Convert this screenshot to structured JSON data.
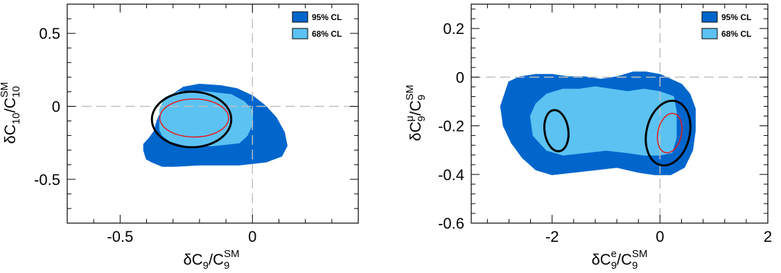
{
  "colors": {
    "cl95": "#0066cc",
    "cl68": "#5cc2f2",
    "red_contour": "#e8171d",
    "black_contour": "#000000",
    "dashed": "#bfbfbf"
  },
  "chart_data": [
    {
      "type": "contour",
      "xlabel": {
        "main": "δC",
        "sub": "9",
        "over": "/C",
        "sub2": "9",
        "sup2": "SM"
      },
      "ylabel": {
        "main": "δC",
        "sub": "10",
        "over": "/C",
        "sub2": "10",
        "sup2": "SM"
      },
      "xlim": [
        -0.7,
        0.4
      ],
      "ylim": [
        -0.8,
        0.7
      ],
      "xticks": [
        -0.5,
        0
      ],
      "xtick_labels": [
        "-0.5",
        "0"
      ],
      "yticks": [
        -0.5,
        0,
        0.5
      ],
      "ytick_labels": [
        "-0.5",
        "0",
        "0.5"
      ],
      "reference_lines": {
        "x": 0,
        "y": 0
      },
      "legend": {
        "placement": "top-right",
        "entries": [
          "95% CL",
          "68% CL"
        ]
      },
      "region_95": [
        [
          -0.41,
          -0.3
        ],
        [
          -0.4,
          -0.36
        ],
        [
          -0.38,
          -0.38
        ],
        [
          -0.34,
          -0.41
        ],
        [
          -0.3,
          -0.41
        ],
        [
          -0.2,
          -0.4
        ],
        [
          -0.05,
          -0.4
        ],
        [
          0.05,
          -0.38
        ],
        [
          0.11,
          -0.34
        ],
        [
          0.13,
          -0.27
        ],
        [
          0.12,
          -0.18
        ],
        [
          0.09,
          -0.08
        ],
        [
          0.05,
          0.0
        ],
        [
          0.0,
          0.07
        ],
        [
          -0.06,
          0.12
        ],
        [
          -0.12,
          0.14
        ],
        [
          -0.2,
          0.15
        ],
        [
          -0.26,
          0.13
        ],
        [
          -0.31,
          0.07
        ],
        [
          -0.34,
          -0.02
        ],
        [
          -0.36,
          -0.1
        ],
        [
          -0.37,
          -0.17
        ],
        [
          -0.39,
          -0.22
        ],
        [
          -0.41,
          -0.26
        ]
      ],
      "region_68": [
        [
          -0.35,
          -0.16
        ],
        [
          -0.35,
          -0.02
        ],
        [
          -0.33,
          0.06
        ],
        [
          -0.28,
          0.1
        ],
        [
          -0.18,
          0.1
        ],
        [
          -0.08,
          0.08
        ],
        [
          -0.03,
          0.03
        ],
        [
          0.0,
          -0.03
        ],
        [
          0.0,
          -0.12
        ],
        [
          -0.02,
          -0.2
        ],
        [
          -0.05,
          -0.25
        ],
        [
          -0.15,
          -0.27
        ],
        [
          -0.25,
          -0.27
        ],
        [
          -0.31,
          -0.24
        ],
        [
          -0.34,
          -0.2
        ]
      ],
      "ellipses": [
        {
          "color": "black",
          "cx": -0.23,
          "cy": -0.09,
          "rx": 0.15,
          "ry": 0.19,
          "width": 3
        },
        {
          "color": "red",
          "cx": -0.22,
          "cy": -0.08,
          "rx": 0.13,
          "ry": 0.13,
          "width": 1.5
        }
      ]
    },
    {
      "type": "contour",
      "xlabel": {
        "main": "δC",
        "sub": "9",
        "sup": "e",
        "over": "/C",
        "sub2": "9",
        "sup2": "SM"
      },
      "ylabel": {
        "main": "δC",
        "sub": "9",
        "sup": "μ",
        "over": "/C",
        "sub2": "9",
        "sup2": "SM"
      },
      "xlim": [
        -3.5,
        2
      ],
      "ylim": [
        -0.6,
        0.3
      ],
      "xticks": [
        -2,
        0,
        2
      ],
      "xtick_labels": [
        "-2",
        "0",
        "2"
      ],
      "yticks": [
        -0.6,
        -0.4,
        -0.2,
        0,
        0.2
      ],
      "ytick_labels": [
        "-0.6",
        "-0.4",
        "-0.2",
        "0",
        "0.2"
      ],
      "reference_lines": {
        "x": 0,
        "y": 0
      },
      "legend": {
        "placement": "top-right",
        "entries": [
          "95% CL",
          "68% CL"
        ]
      },
      "region_95": [
        [
          -2.95,
          -0.12
        ],
        [
          -2.8,
          -0.02
        ],
        [
          -2.6,
          0.0
        ],
        [
          -2.3,
          0.01
        ],
        [
          -2.0,
          0.01
        ],
        [
          -1.7,
          0.0
        ],
        [
          -1.4,
          0.0
        ],
        [
          -1.1,
          -0.01
        ],
        [
          -0.8,
          0.0
        ],
        [
          -0.5,
          0.02
        ],
        [
          -0.25,
          0.02
        ],
        [
          0.0,
          0.01
        ],
        [
          0.2,
          -0.01
        ],
        [
          0.4,
          -0.03
        ],
        [
          0.55,
          -0.07
        ],
        [
          0.65,
          -0.13
        ],
        [
          0.65,
          -0.22
        ],
        [
          0.6,
          -0.3
        ],
        [
          0.45,
          -0.37
        ],
        [
          0.2,
          -0.4
        ],
        [
          -0.1,
          -0.4
        ],
        [
          -0.4,
          -0.39
        ],
        [
          -0.8,
          -0.37
        ],
        [
          -1.2,
          -0.38
        ],
        [
          -1.6,
          -0.39
        ],
        [
          -2.0,
          -0.4
        ],
        [
          -2.3,
          -0.38
        ],
        [
          -2.55,
          -0.33
        ],
        [
          -2.75,
          -0.27
        ],
        [
          -2.9,
          -0.2
        ]
      ],
      "region_68": [
        [
          -2.3,
          -0.11
        ],
        [
          -2.1,
          -0.07
        ],
        [
          -1.8,
          -0.05
        ],
        [
          -1.5,
          -0.05
        ],
        [
          -1.2,
          -0.04
        ],
        [
          -0.9,
          -0.05
        ],
        [
          -0.6,
          -0.06
        ],
        [
          -0.3,
          -0.05
        ],
        [
          0.0,
          -0.06
        ],
        [
          0.25,
          -0.08
        ],
        [
          0.3,
          -0.14
        ],
        [
          0.3,
          -0.25
        ],
        [
          0.22,
          -0.31
        ],
        [
          0.0,
          -0.32
        ],
        [
          -0.3,
          -0.32
        ],
        [
          -0.6,
          -0.31
        ],
        [
          -1.0,
          -0.3
        ],
        [
          -1.4,
          -0.31
        ],
        [
          -1.8,
          -0.32
        ],
        [
          -2.1,
          -0.3
        ],
        [
          -2.35,
          -0.24
        ],
        [
          -2.4,
          -0.16
        ]
      ],
      "ellipses": [
        {
          "color": "black",
          "cx": -1.92,
          "cy": -0.22,
          "rx": 0.22,
          "ry": 0.085,
          "angle": -8,
          "width": 3
        },
        {
          "color": "black",
          "cx": 0.15,
          "cy": -0.23,
          "rx": 0.4,
          "ry": 0.135,
          "angle": 13,
          "width": 3
        },
        {
          "color": "red",
          "cx": 0.18,
          "cy": -0.23,
          "rx": 0.22,
          "ry": 0.082,
          "angle": 12,
          "width": 1.5
        }
      ]
    }
  ]
}
